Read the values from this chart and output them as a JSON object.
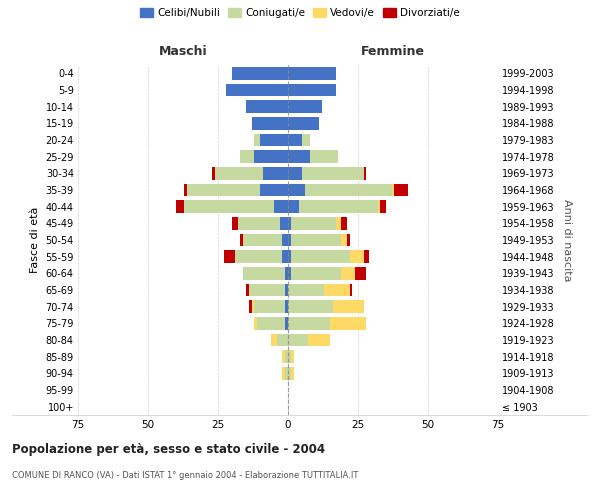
{
  "age_groups": [
    "100+",
    "95-99",
    "90-94",
    "85-89",
    "80-84",
    "75-79",
    "70-74",
    "65-69",
    "60-64",
    "55-59",
    "50-54",
    "45-49",
    "40-44",
    "35-39",
    "30-34",
    "25-29",
    "20-24",
    "15-19",
    "10-14",
    "5-9",
    "0-4"
  ],
  "birth_years": [
    "≤ 1903",
    "1904-1908",
    "1909-1913",
    "1914-1918",
    "1919-1923",
    "1924-1928",
    "1929-1933",
    "1934-1938",
    "1939-1943",
    "1944-1948",
    "1949-1953",
    "1954-1958",
    "1959-1963",
    "1964-1968",
    "1969-1973",
    "1974-1978",
    "1979-1983",
    "1984-1988",
    "1989-1993",
    "1994-1998",
    "1999-2003"
  ],
  "colors": {
    "celibi": "#4472C4",
    "coniugati": "#C5D9A0",
    "vedovi": "#FFD966",
    "divorziati": "#C00000"
  },
  "maschi": {
    "celibi": [
      0,
      0,
      0,
      0,
      0,
      1,
      1,
      1,
      1,
      2,
      2,
      3,
      5,
      10,
      9,
      12,
      10,
      13,
      15,
      22,
      20
    ],
    "coniugati": [
      0,
      0,
      1,
      1,
      4,
      10,
      11,
      13,
      15,
      17,
      14,
      15,
      32,
      26,
      17,
      5,
      2,
      0,
      0,
      0,
      0
    ],
    "vedovi": [
      0,
      0,
      1,
      1,
      2,
      1,
      1,
      0,
      0,
      0,
      0,
      0,
      0,
      0,
      0,
      0,
      0,
      0,
      0,
      0,
      0
    ],
    "divorziati": [
      0,
      0,
      0,
      0,
      0,
      0,
      1,
      1,
      0,
      4,
      1,
      2,
      3,
      1,
      1,
      0,
      0,
      0,
      0,
      0,
      0
    ]
  },
  "femmine": {
    "celibi": [
      0,
      0,
      0,
      0,
      0,
      0,
      0,
      0,
      1,
      1,
      1,
      1,
      4,
      6,
      5,
      8,
      5,
      11,
      12,
      17,
      17
    ],
    "coniugati": [
      0,
      0,
      1,
      1,
      7,
      15,
      16,
      13,
      18,
      21,
      18,
      16,
      28,
      31,
      22,
      10,
      3,
      0,
      0,
      0,
      0
    ],
    "vedovi": [
      0,
      0,
      1,
      1,
      8,
      13,
      11,
      9,
      5,
      5,
      2,
      2,
      1,
      1,
      0,
      0,
      0,
      0,
      0,
      0,
      0
    ],
    "divorziati": [
      0,
      0,
      0,
      0,
      0,
      0,
      0,
      1,
      4,
      2,
      1,
      2,
      2,
      5,
      1,
      0,
      0,
      0,
      0,
      0,
      0
    ]
  },
  "xlim": 75,
  "title": "Popolazione per età, sesso e stato civile - 2004",
  "subtitle": "COMUNE DI RANCO (VA) - Dati ISTAT 1° gennaio 2004 - Elaborazione TUTTITALIA.IT",
  "ylabel_left": "Fasce di età",
  "ylabel_right": "Anni di nascita",
  "xlabel_maschi": "Maschi",
  "xlabel_femmine": "Femmine",
  "legend_labels": [
    "Celibi/Nubili",
    "Coniugati/e",
    "Vedovi/e",
    "Divorziati/e"
  ],
  "bg_color": "#FFFFFF",
  "grid_color": "#CCCCCC"
}
